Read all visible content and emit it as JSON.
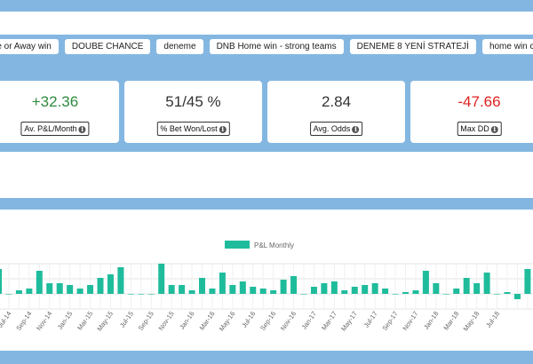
{
  "tabs": [
    {
      "label": "me or Away win"
    },
    {
      "label": "DOUBE CHANCE"
    },
    {
      "label": "deneme"
    },
    {
      "label": "DNB Home win - strong teams"
    },
    {
      "label": "DENEME 8 YENİ STRATEJİ"
    },
    {
      "label": "home win co"
    }
  ],
  "stats": [
    {
      "value": "+32.36",
      "label": "Av. P&L/Month",
      "info_icon": "info-circle-icon"
    },
    {
      "value": "51/45 %",
      "label": "% Bet Won/Lost",
      "info_icon": "info-circle-icon"
    },
    {
      "value": "2.84",
      "label": "Avg. Odds",
      "info_icon": "info-circle-icon"
    },
    {
      "value": "-47.66",
      "label": "Max DD",
      "info_icon": "info-circle-icon"
    }
  ],
  "colors": {
    "band": "#83b7e1",
    "bar": "#1fbc9c",
    "positive": "#2e8b3e",
    "negative": "#e02020"
  },
  "chart_data": {
    "type": "bar",
    "legend": "P&L Monthly",
    "legend_position": "top-center",
    "x_tick_labels": [
      "Jul-14",
      "Sep-14",
      "Nov-14",
      "Jan-15",
      "Mar-15",
      "May-15",
      "Jul-15",
      "Sep-15",
      "Nov-15",
      "Jan-16",
      "Mar-16",
      "May-16",
      "Jul-16",
      "Sep-16",
      "Nov-16",
      "Jan-17",
      "Mar-17",
      "May-17",
      "Jul-17",
      "Sep-17",
      "Nov-17",
      "Jan-18",
      "Mar-18",
      "May-18",
      "Jul-18"
    ],
    "values": [
      14,
      0,
      2,
      3,
      13,
      6,
      6,
      5,
      3,
      5,
      9,
      11,
      15,
      0,
      0,
      0,
      17,
      5,
      5,
      2,
      9,
      3,
      12,
      5,
      7,
      4,
      3,
      2,
      8,
      10,
      0,
      4,
      6,
      7,
      2,
      4,
      5,
      6,
      3,
      0,
      1,
      2,
      13,
      6,
      0,
      3,
      9,
      6,
      12,
      0,
      1,
      -3,
      14,
      6,
      0,
      4,
      6,
      7,
      3,
      2,
      3,
      3
    ]
  }
}
